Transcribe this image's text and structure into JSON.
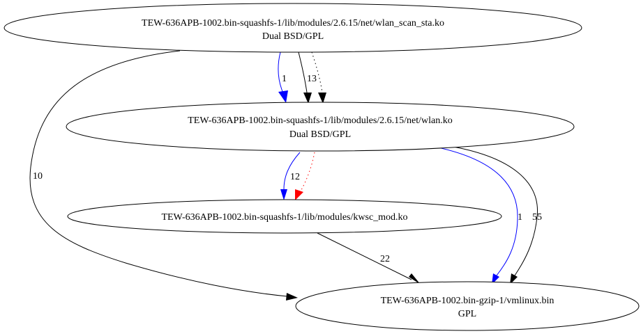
{
  "colors": {
    "default_edge": "#000000",
    "blue_edge": "#0000ff",
    "red_edge": "#ff0000"
  },
  "nodes": {
    "wlan_scan_sta": {
      "line1": "TEW-636APB-1002.bin-squashfs-1/lib/modules/2.6.15/net/wlan_scan_sta.ko",
      "line2": "Dual BSD/GPL"
    },
    "wlan": {
      "line1": "TEW-636APB-1002.bin-squashfs-1/lib/modules/2.6.15/net/wlan.ko",
      "line2": "Dual BSD/GPL"
    },
    "kwsc_mod": {
      "line1": "TEW-636APB-1002.bin-squashfs-1/lib/modules/kwsc_mod.ko"
    },
    "vmlinux": {
      "line1": "TEW-636APB-1002.bin-gzip-1/vmlinux.bin",
      "line2": "GPL"
    }
  },
  "edges": {
    "scan_to_wlan_blue": {
      "label": "1",
      "color": "#0000ff",
      "style": "solid"
    },
    "scan_to_wlan_black": {
      "label": "13",
      "color": "#000000",
      "style": "solid"
    },
    "scan_to_wlan_dotted": {
      "label": "",
      "color": "#000000",
      "style": "dotted"
    },
    "scan_to_vmlinux": {
      "label": "10",
      "color": "#000000",
      "style": "solid"
    },
    "wlan_to_kwsc_blue": {
      "label": "12",
      "color": "#0000ff",
      "style": "solid"
    },
    "wlan_to_kwsc_red": {
      "label": "",
      "color": "#ff0000",
      "style": "dotted"
    },
    "wlan_to_vmlinux_blue": {
      "label": "1",
      "color": "#0000ff",
      "style": "solid"
    },
    "wlan_to_vmlinux_black": {
      "label": "55",
      "color": "#000000",
      "style": "solid"
    },
    "kwsc_to_vmlinux": {
      "label": "22",
      "color": "#000000",
      "style": "solid"
    }
  }
}
